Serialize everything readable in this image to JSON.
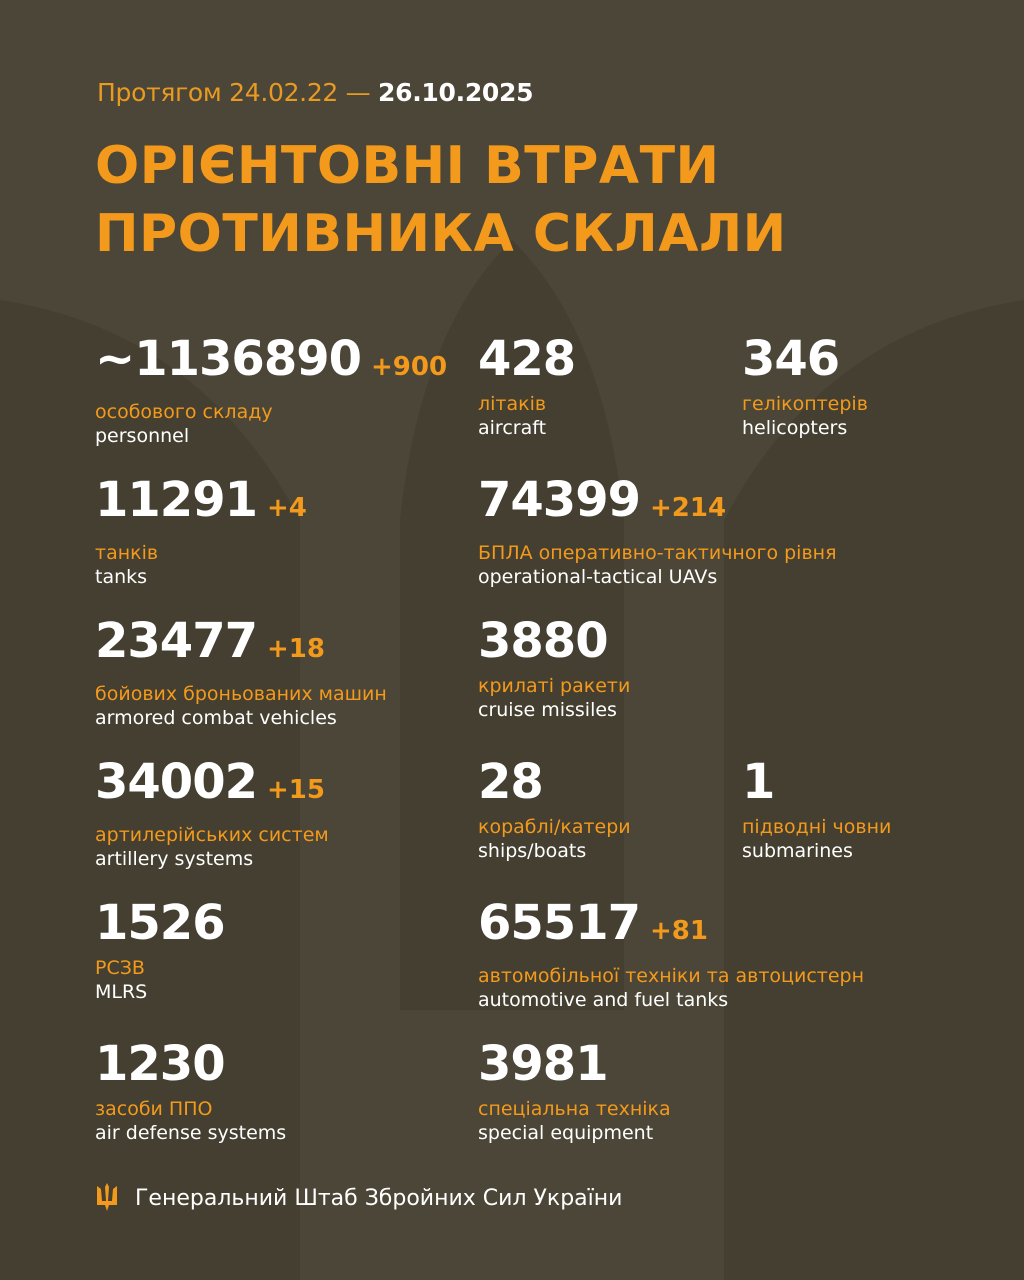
{
  "header": {
    "period_prefix": "Протягом 24.02.22 —",
    "period_end": "26.10.2025",
    "title_line1": "ОРІЄНТОВНІ ВТРАТИ",
    "title_line2": "ПРОТИВНИКА СКЛАЛИ"
  },
  "colors": {
    "background": "#4b4637",
    "accent": "#f39a1c",
    "text": "#ffffff"
  },
  "items": [
    {
      "value": "~1136890",
      "delta": "+900",
      "ua": "особового складу",
      "en": "personnel"
    },
    {
      "value": "428",
      "delta": "",
      "ua": "літаків",
      "en": "aircraft"
    },
    {
      "value": "346",
      "delta": "",
      "ua": "гелікоптерів",
      "en": "helicopters"
    },
    {
      "value": "11291",
      "delta": "+4",
      "ua": "танків",
      "en": "tanks"
    },
    {
      "value": "74399",
      "delta": "+214",
      "ua": "БПЛА оперативно-тактичного рівня",
      "en": "operational-tactical UAVs"
    },
    {
      "value": "23477",
      "delta": "+18",
      "ua": "бойових броньованих машин",
      "en": "armored combat vehicles"
    },
    {
      "value": "3880",
      "delta": "",
      "ua": "крилаті ракети",
      "en": "cruise missiles"
    },
    {
      "value": "34002",
      "delta": "+15",
      "ua": "артилерійських систем",
      "en": "artillery systems"
    },
    {
      "value": "28",
      "delta": "",
      "ua": "кораблі/катери",
      "en": "ships/boats"
    },
    {
      "value": "1",
      "delta": "",
      "ua": "підводні човни",
      "en": "submarines"
    },
    {
      "value": "1526",
      "delta": "",
      "ua": "РСЗВ",
      "en": "MLRS"
    },
    {
      "value": "65517",
      "delta": "+81",
      "ua": "автомобільної техніки та автоцистерн",
      "en": "automotive and fuel tanks"
    },
    {
      "value": "1230",
      "delta": "",
      "ua": "засоби ППО",
      "en": "air defense systems"
    },
    {
      "value": "3981",
      "delta": "",
      "ua": "спеціальна техніка",
      "en": "special equipment"
    }
  ],
  "footer": {
    "icon": "trident-icon",
    "text": "Генеральний Штаб Збройних Сил України"
  }
}
